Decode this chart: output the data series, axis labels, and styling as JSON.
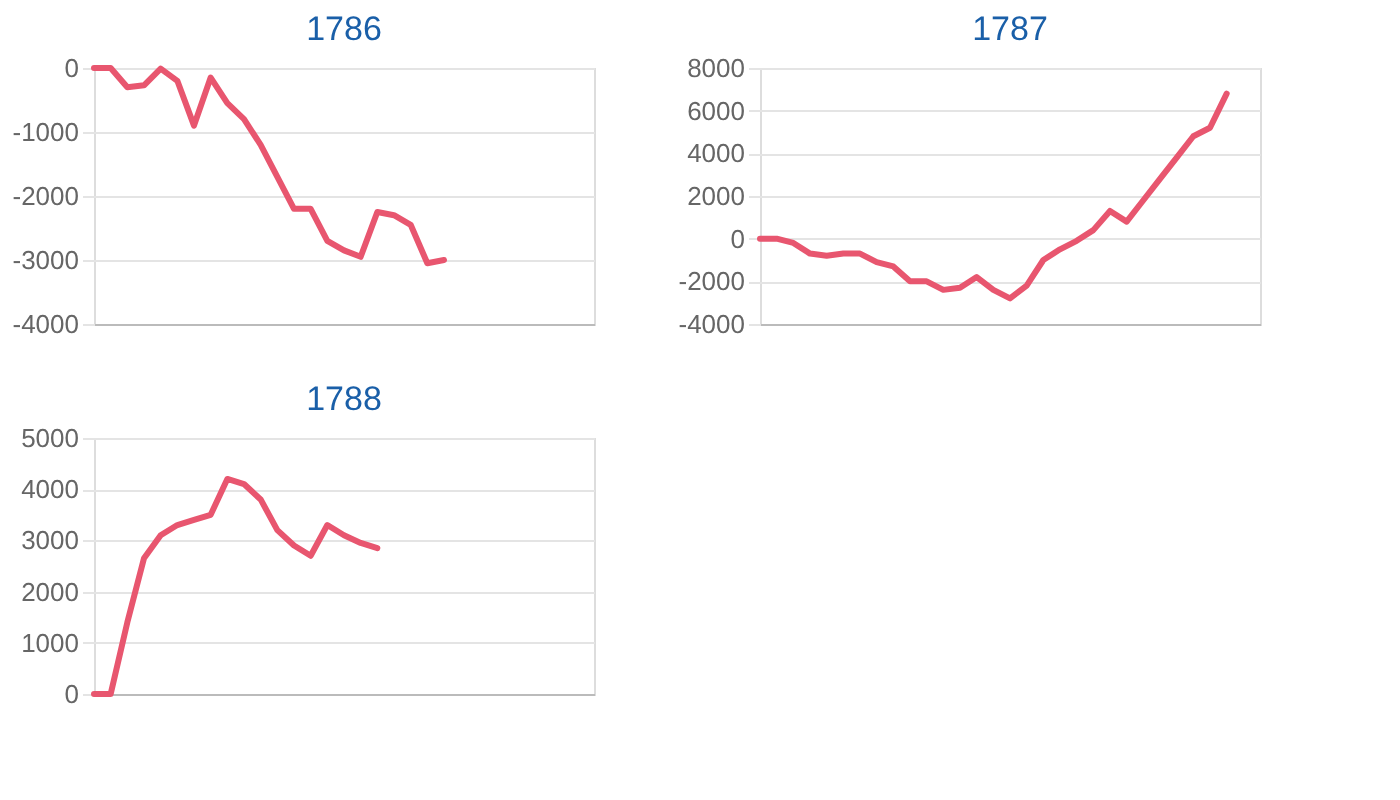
{
  "chart_data": [
    {
      "type": "line",
      "title": "1786",
      "categories": [
        null,
        null,
        null,
        null,
        null,
        null,
        null,
        null,
        null,
        null,
        null,
        null,
        null,
        null,
        null,
        null,
        null,
        null,
        null,
        null,
        null,
        null,
        null,
        null,
        null,
        null,
        null,
        null,
        null,
        null,
        null
      ],
      "series": [
        {
          "color": "#e8566f",
          "values": [
            0,
            0,
            -300,
            -270,
            -10,
            -200,
            -900,
            -150,
            -550,
            -800,
            -1200,
            -1700,
            -2200,
            -2200,
            -2700,
            -2850,
            -2950,
            -2250,
            -2300,
            -2450,
            -3050,
            -3000,
            null,
            null,
            null,
            null,
            null,
            null,
            null,
            null,
            null
          ]
        }
      ],
      "ylim": [
        -4000,
        0
      ],
      "yticks": [
        -4000,
        -3000,
        -2000,
        -1000,
        0
      ],
      "grid": "y",
      "tick_labels": "y",
      "marker": "none",
      "line_style": "solid"
    },
    {
      "type": "line",
      "title": "1787",
      "categories": [
        null,
        null,
        null,
        null,
        null,
        null,
        null,
        null,
        null,
        null,
        null,
        null,
        null,
        null,
        null,
        null,
        null,
        null,
        null,
        null,
        null,
        null,
        null,
        null,
        null,
        null,
        null,
        null,
        null,
        null,
        null
      ],
      "series": [
        {
          "color": "#e8566f",
          "values": [
            0,
            0,
            -200,
            -700,
            -800,
            -700,
            -700,
            -1100,
            -1300,
            -2000,
            -2000,
            -2400,
            -2300,
            -1800,
            -2400,
            -2800,
            -2200,
            -1000,
            -500,
            -100,
            400,
            1300,
            800,
            1800,
            2800,
            3800,
            4800,
            5200,
            6800,
            null,
            null
          ]
        }
      ],
      "ylim": [
        -4000,
        8000
      ],
      "yticks": [
        -4000,
        -2000,
        0,
        2000,
        4000,
        6000,
        8000
      ],
      "grid": "y",
      "tick_labels": "y",
      "marker": "none",
      "line_style": "solid"
    },
    {
      "type": "line",
      "title": "1788",
      "categories": [
        null,
        null,
        null,
        null,
        null,
        null,
        null,
        null,
        null,
        null,
        null,
        null,
        null,
        null,
        null,
        null,
        null,
        null,
        null,
        null,
        null,
        null,
        null,
        null,
        null,
        null,
        null,
        null,
        null,
        null,
        null
      ],
      "series": [
        {
          "color": "#e8566f",
          "values": [
            0,
            0,
            1400,
            2650,
            3100,
            3300,
            3400,
            3500,
            4200,
            4100,
            3800,
            3200,
            2900,
            2700,
            3300,
            3100,
            2950,
            2850,
            null,
            null,
            null,
            null,
            null,
            null,
            null,
            null,
            null,
            null,
            null,
            null,
            null
          ]
        }
      ],
      "ylim": [
        0,
        5000
      ],
      "yticks": [
        0,
        1000,
        2000,
        3000,
        4000,
        5000
      ],
      "grid": "y",
      "tick_labels": "y",
      "marker": "none",
      "line_style": "solid"
    }
  ]
}
